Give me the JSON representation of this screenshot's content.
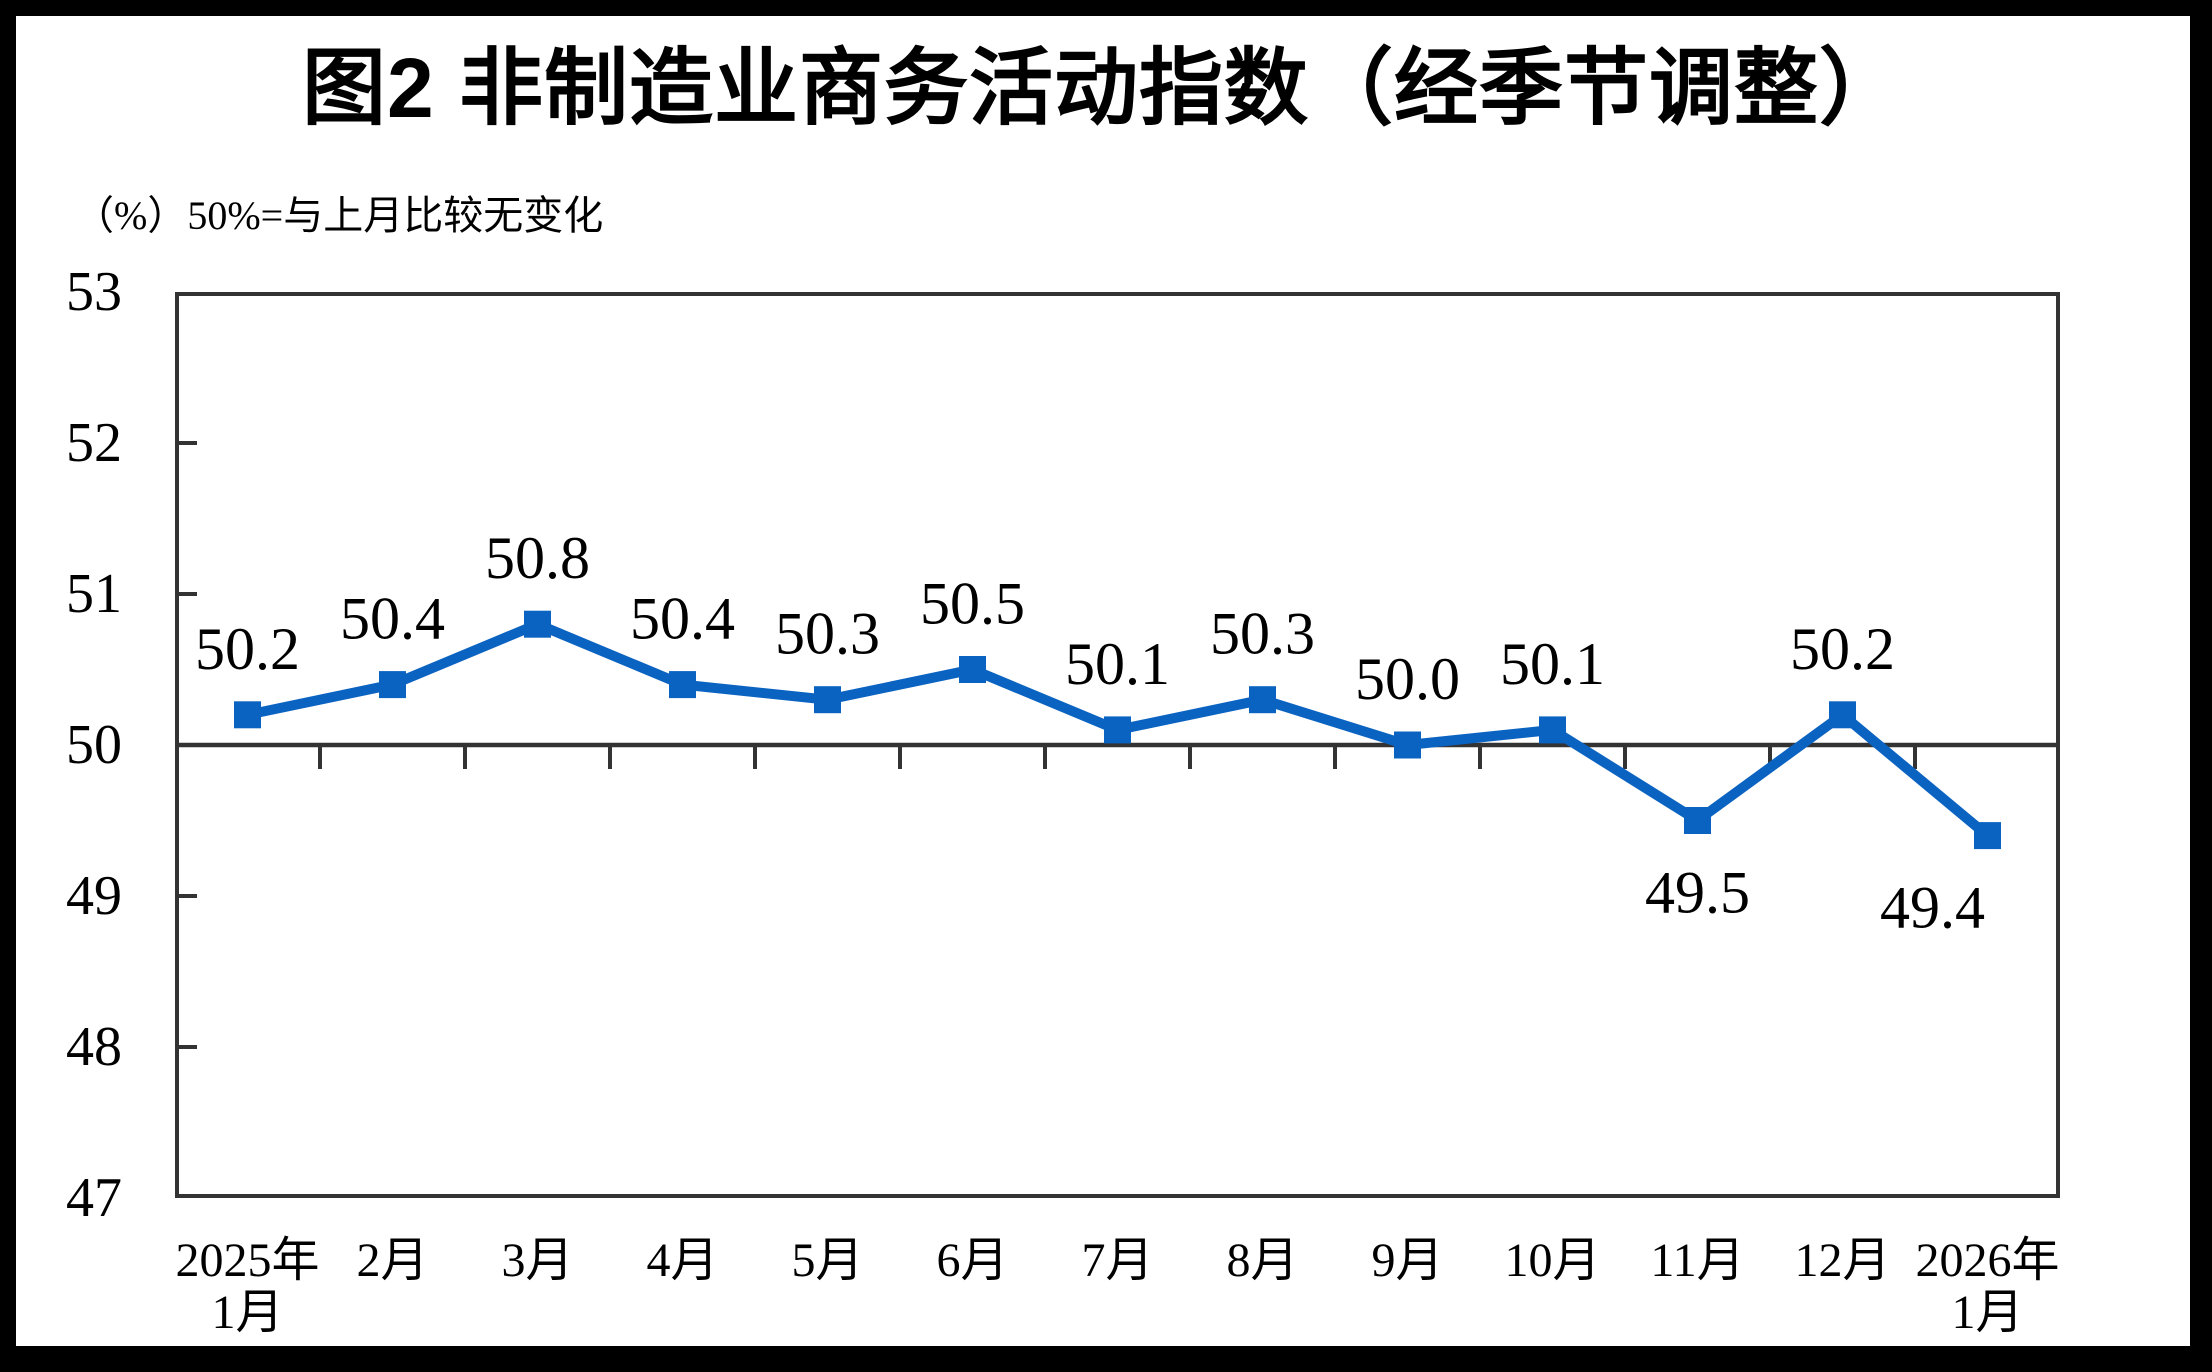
{
  "chart_data": {
    "type": "line",
    "title": "图2 非制造业商务活动指数（经季节调整）",
    "unit_label": "（%）50%=与上月比较无变化",
    "categories": [
      [
        "2025年",
        "1月"
      ],
      [
        "2月"
      ],
      [
        "3月"
      ],
      [
        "4月"
      ],
      [
        "5月"
      ],
      [
        "6月"
      ],
      [
        "7月"
      ],
      [
        "8月"
      ],
      [
        "9月"
      ],
      [
        "10月"
      ],
      [
        "11月"
      ],
      [
        "12月"
      ],
      [
        "2026年",
        "1月"
      ]
    ],
    "values": [
      50.2,
      50.4,
      50.8,
      50.4,
      50.3,
      50.5,
      50.1,
      50.3,
      50.0,
      50.1,
      49.5,
      50.2,
      49.4
    ],
    "ylim": [
      47,
      53
    ],
    "ytick_step": 1,
    "reference_value": 50,
    "grid": "off",
    "legend": "none",
    "marker": "square",
    "colors": {
      "line": "#0B63C1",
      "axis": "#333333",
      "text": "#000000",
      "frame": "#000000",
      "background": "#FFFFFF"
    }
  }
}
